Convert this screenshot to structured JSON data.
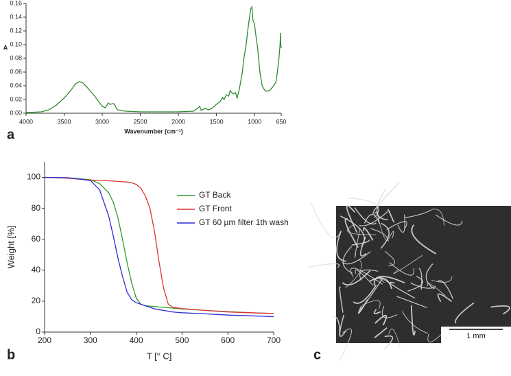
{
  "chart_data": [
    {
      "type": "line",
      "panel_label": "a",
      "y_label": "A",
      "x_label": "Wavenumber (cm⁻¹)",
      "color": "#2e8b2e",
      "x": [
        4000,
        3800,
        3700,
        3600,
        3500,
        3400,
        3350,
        3300,
        3250,
        3200,
        3100,
        3000,
        2960,
        2920,
        2900,
        2850,
        2800,
        2700,
        2500,
        2300,
        2100,
        2000,
        1800,
        1740,
        1720,
        1700,
        1650,
        1600,
        1550,
        1500,
        1450,
        1420,
        1400,
        1370,
        1340,
        1320,
        1300,
        1280,
        1250,
        1230,
        1200,
        1160,
        1140,
        1110,
        1090,
        1060,
        1050,
        1035,
        1020,
        1000,
        990,
        960,
        930,
        900,
        870,
        850,
        800,
        750,
        720,
        700,
        680,
        665,
        660,
        655,
        650
      ],
      "values": [
        0.001,
        0.002,
        0.005,
        0.012,
        0.022,
        0.035,
        0.043,
        0.046,
        0.044,
        0.038,
        0.025,
        0.01,
        0.008,
        0.015,
        0.013,
        0.014,
        0.005,
        0.003,
        0.002,
        0.002,
        0.002,
        0.002,
        0.003,
        0.008,
        0.01,
        0.004,
        0.007,
        0.005,
        0.008,
        0.013,
        0.017,
        0.023,
        0.02,
        0.027,
        0.025,
        0.033,
        0.03,
        0.028,
        0.03,
        0.022,
        0.035,
        0.06,
        0.08,
        0.1,
        0.12,
        0.145,
        0.152,
        0.155,
        0.135,
        0.13,
        0.12,
        0.095,
        0.06,
        0.04,
        0.034,
        0.032,
        0.033,
        0.04,
        0.045,
        0.06,
        0.08,
        0.1,
        0.117,
        0.1,
        0.095
      ],
      "xlim": [
        4000,
        650
      ],
      "xticks": [
        4000,
        3500,
        3000,
        2500,
        2000,
        1500,
        1000,
        650
      ],
      "ylim": [
        0,
        0.16
      ],
      "yticks": [
        {
          "value": 0,
          "label": "0.00"
        },
        {
          "value": 0.02,
          "label": "0.02"
        },
        {
          "value": 0.04,
          "label": "0.04"
        },
        {
          "value": 0.06,
          "label": "0.06"
        },
        {
          "value": 0.08,
          "label": "0.08"
        },
        {
          "value": 0.1,
          "label": "0.10"
        },
        {
          "value": 0.12,
          "label": "0.12"
        },
        {
          "value": 0.14,
          "label": "0.14"
        },
        {
          "value": 0.16,
          "label": "0.16"
        }
      ]
    },
    {
      "type": "line",
      "panel_label": "b",
      "y_label": "Weight [%]",
      "x_label": "T [° C]",
      "legend": "center right",
      "x": [
        200,
        250,
        300,
        320,
        340,
        350,
        360,
        370,
        380,
        390,
        400,
        410,
        420,
        430,
        440,
        450,
        460,
        470,
        480,
        500,
        550,
        600,
        650,
        700
      ],
      "series": [
        {
          "name": "GT Back",
          "color": "#2e9b2e",
          "values": [
            100,
            99.8,
            98.5,
            96,
            90,
            84,
            74,
            60,
            45,
            32,
            22,
            18,
            17,
            16.8,
            16.5,
            16.2,
            16,
            15.8,
            15.5,
            15,
            14,
            13.2,
            12.5,
            12
          ]
        },
        {
          "name": "GT Front",
          "color": "#e03030",
          "values": [
            100,
            99.5,
            98.3,
            98,
            97.8,
            97.6,
            97.4,
            97.2,
            97,
            96.5,
            95.5,
            93,
            88,
            80,
            65,
            45,
            28,
            18,
            16,
            15.2,
            14,
            13,
            12.5,
            12
          ]
        },
        {
          "name": "GT 60 µm filter 1th wash",
          "color": "#2a2ad8",
          "values": [
            100,
            99.8,
            98,
            92,
            75,
            62,
            48,
            36,
            26,
            21,
            19,
            18,
            17,
            16,
            15,
            14.5,
            14,
            13.5,
            13,
            12.5,
            11.8,
            11,
            10.5,
            10
          ]
        }
      ],
      "xlim": [
        200,
        700
      ],
      "xticks": [
        200,
        300,
        400,
        500,
        600,
        700
      ],
      "ylim": [
        0,
        110
      ],
      "yticks": [
        0,
        20,
        40,
        60,
        80,
        100
      ]
    }
  ],
  "micrograph": {
    "panel_label": "c",
    "scale_bar_label": "1 mm"
  }
}
